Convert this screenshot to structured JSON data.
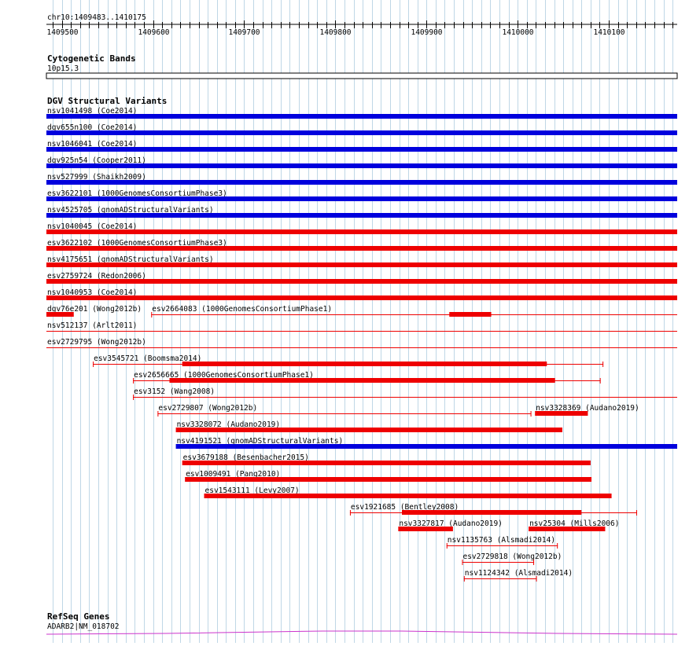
{
  "ruler": {
    "coord_label": "chr10:1409483..1410175",
    "start": 1409483,
    "end": 1410175,
    "ticks": [
      {
        "pos": 1409500,
        "label": "1409500"
      },
      {
        "pos": 1409600,
        "label": "1409600"
      },
      {
        "pos": 1409700,
        "label": "1409700"
      },
      {
        "pos": 1409800,
        "label": "1409800"
      },
      {
        "pos": 1409900,
        "label": "1409900"
      },
      {
        "pos": 1410000,
        "label": "1410000"
      },
      {
        "pos": 1410100,
        "label": "1410100"
      }
    ]
  },
  "cytobands": {
    "title": "Cytogenetic Bands",
    "band_label": "10p15.3"
  },
  "dgv": {
    "title": "DGV Structural Variants",
    "features": [
      {
        "label": "nsv1041498 (Coe2014)",
        "start": 1409483,
        "end": 1410175,
        "color": "#0000dd",
        "thick": true,
        "row": 0
      },
      {
        "label": "dgv655n100 (Coe2014)",
        "start": 1409483,
        "end": 1410175,
        "color": "#0000dd",
        "thick": true,
        "row": 1
      },
      {
        "label": "nsv1046041 (Coe2014)",
        "start": 1409483,
        "end": 1410175,
        "color": "#0000dd",
        "thick": true,
        "row": 2
      },
      {
        "label": "dgv925n54 (Cooper2011)",
        "start": 1409483,
        "end": 1410175,
        "color": "#0000dd",
        "thick": true,
        "row": 3
      },
      {
        "label": "nsv527999 (Shaikh2009)",
        "start": 1409483,
        "end": 1410175,
        "color": "#0000dd",
        "thick": true,
        "row": 4
      },
      {
        "label": "esv3622101 (1000GenomesConsortiumPhase3)",
        "start": 1409483,
        "end": 1410175,
        "color": "#0000dd",
        "thick": true,
        "row": 5
      },
      {
        "label": "nsv4525705 (gnomADStructuralVariants)",
        "start": 1409483,
        "end": 1410175,
        "color": "#0000dd",
        "thick": true,
        "row": 6
      },
      {
        "label": "nsv1040045 (Coe2014)",
        "start": 1409483,
        "end": 1410175,
        "color": "#ee0000",
        "thick": true,
        "row": 7
      },
      {
        "label": "esv3622102 (1000GenomesConsortiumPhase3)",
        "start": 1409483,
        "end": 1410175,
        "color": "#ee0000",
        "thick": true,
        "row": 8
      },
      {
        "label": "nsv4175651 (gnomADStructuralVariants)",
        "start": 1409483,
        "end": 1410175,
        "color": "#ee0000",
        "thick": true,
        "row": 9
      },
      {
        "label": "esv2759724 (Redon2006)",
        "start": 1409483,
        "end": 1410175,
        "color": "#ee0000",
        "thick": true,
        "row": 10
      },
      {
        "label": "nsv1040953 (Coe2014)",
        "start": 1409483,
        "end": 1410175,
        "color": "#ee0000",
        "thick": true,
        "row": 11
      },
      {
        "label": "dgv76e201 (Wong2012b)",
        "start": 1409483,
        "end": 1409513,
        "color": "#ee0000",
        "thick": true,
        "row": 12
      },
      {
        "label": "esv2664083 (1000GenomesConsortiumPhase1)",
        "start": 1409598,
        "end": 1410175,
        "color": "#ee0000",
        "thick": false,
        "inner_start": 1409925,
        "inner_end": 1409971,
        "row": 12
      },
      {
        "label": "nsv512137 (Arlt2011)",
        "start": 1409483,
        "end": 1410175,
        "color": "#ee0000",
        "thick": false,
        "row": 13
      },
      {
        "label": "esv2729795 (Wong2012b)",
        "start": 1409483,
        "end": 1410175,
        "color": "#ee0000",
        "thick": false,
        "row": 14
      },
      {
        "label": "esv3545721 (Boomsma2014)",
        "start": 1409534,
        "end": 1410094,
        "color": "#ee0000",
        "thick": false,
        "inner_start": 1409632,
        "inner_end": 1410032,
        "row": 15
      },
      {
        "label": "esv2656665 (1000GenomesConsortiumPhase1)",
        "start": 1409578,
        "end": 1410091,
        "color": "#ee0000",
        "thick": false,
        "inner_start": 1409618,
        "inner_end": 1410041,
        "row": 16
      },
      {
        "label": "esv3152 (Wang2008)",
        "start": 1409578,
        "end": 1410175,
        "color": "#ee0000",
        "thick": false,
        "row": 17
      },
      {
        "label": "esv2729807 (Wong2012b)",
        "start": 1409605,
        "end": 1410015,
        "color": "#ee0000",
        "thick": false,
        "row": 18
      },
      {
        "label": "nsv3328369 (Audano2019)",
        "start": 1410019,
        "end": 1410077,
        "color": "#ee0000",
        "thick": true,
        "row": 18
      },
      {
        "label": "nsv3328072 (Audano2019)",
        "start": 1409625,
        "end": 1410049,
        "color": "#ee0000",
        "thick": true,
        "row": 19
      },
      {
        "label": "nsv4191521 (gnomADStructuralVariants)",
        "start": 1409625,
        "end": 1410175,
        "color": "#0000dd",
        "thick": true,
        "row": 20
      },
      {
        "label": "esv3679188 (Besenbacher2015)",
        "start": 1409632,
        "end": 1410080,
        "color": "#ee0000",
        "thick": true,
        "row": 21
      },
      {
        "label": "esv1009491 (Pang2010)",
        "start": 1409635,
        "end": 1410081,
        "color": "#ee0000",
        "thick": true,
        "row": 22
      },
      {
        "label": "esv1543111 (Levy2007)",
        "start": 1409656,
        "end": 1410103,
        "color": "#ee0000",
        "thick": true,
        "row": 23
      },
      {
        "label": "esv1921685 (Bentley2008)",
        "start": 1409816,
        "end": 1410131,
        "color": "#ee0000",
        "thick": false,
        "inner_start": 1409873,
        "inner_end": 1410070,
        "row": 24
      },
      {
        "label": "nsv3327817 (Audano2019)",
        "start": 1409869,
        "end": 1409929,
        "color": "#ee0000",
        "thick": true,
        "row": 25
      },
      {
        "label": "nsv25304 (Mills2006)",
        "start": 1410012,
        "end": 1410096,
        "color": "#ee0000",
        "thick": true,
        "row": 25
      },
      {
        "label": "nsv1135763 (Alsmadi2014)",
        "start": 1409922,
        "end": 1410044,
        "color": "#ee0000",
        "thick": false,
        "row": 26
      },
      {
        "label": "esv2729818 (Wong2012b)",
        "start": 1409939,
        "end": 1410018,
        "color": "#ee0000",
        "thick": false,
        "row": 27
      },
      {
        "label": "nsv1124342 (Alsmadi2014)",
        "start": 1409941,
        "end": 1410021,
        "color": "#ee0000",
        "thick": false,
        "row": 28
      }
    ]
  },
  "refseq": {
    "title": "RefSeq Genes",
    "gene_label": "ADARB2|NM_018702",
    "color": "#cc33cc"
  },
  "colors": {
    "grid": "#bfd7e6",
    "loss": "#ee0000",
    "gain": "#0000dd"
  }
}
